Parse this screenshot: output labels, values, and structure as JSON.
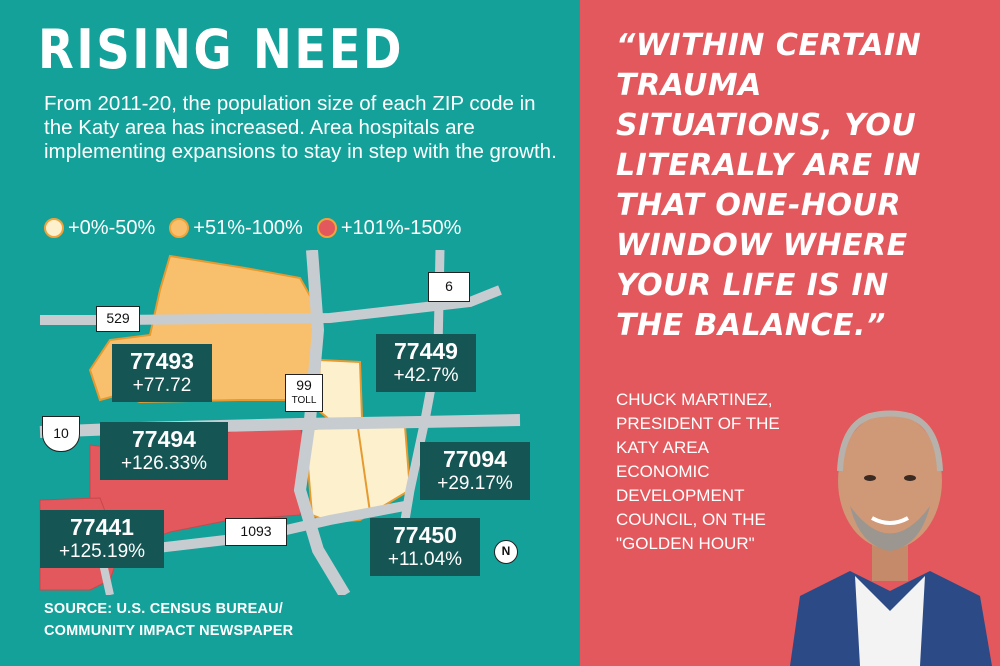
{
  "header": {
    "title": "RISING NEED",
    "intro": "From 2011-20, the population size of each ZIP code in the Katy area has increased. Area hospitals are implementing expansions to stay in step with the growth."
  },
  "legend": [
    {
      "label": "+0%-50%",
      "color": "#fdf0cc"
    },
    {
      "label": "+51%-100%",
      "color": "#f8c06d"
    },
    {
      "label": "+101%-150%",
      "color": "#e2585c"
    }
  ],
  "map": {
    "highways": {
      "h529": "529",
      "h6": "6",
      "h99": "99",
      "h99_toll": "TOLL",
      "h10": "10",
      "h1093": "1093"
    },
    "north_label": "N",
    "zips": [
      {
        "code": "77493",
        "change": "+77.72"
      },
      {
        "code": "77449",
        "change": "+42.7%"
      },
      {
        "code": "77494",
        "change": "+126.33%"
      },
      {
        "code": "77094",
        "change": "+29.17%"
      },
      {
        "code": "77441",
        "change": "+125.19%"
      },
      {
        "code": "77450",
        "change": "+11.04%"
      }
    ]
  },
  "source": {
    "line1": "SOURCE: U.S. CENSUS BUREAU/",
    "line2": "COMMUNITY IMPACT NEWSPAPER"
  },
  "quote": {
    "lines": [
      "“WITHIN CERTAIN",
      "TRAUMA",
      "SITUATIONS, YOU",
      "LITERALLY ARE IN",
      "THAT ONE-HOUR",
      "WINDOW WHERE",
      "YOUR LIFE IS IN",
      "THE BALANCE.”"
    ]
  },
  "attribution": {
    "lines": [
      "CHUCK MARTINEZ,",
      "PRESIDENT OF THE",
      "KATY AREA",
      "ECONOMIC",
      "DEVELOPMENT",
      "COUNCIL, ON THE",
      "\"GOLDEN HOUR\""
    ]
  },
  "colors": {
    "teal": "#14a19a",
    "coral": "#e2585c",
    "dark_label": "#155553",
    "light_zone": "#fdf0cc",
    "mid_zone": "#f8c06d"
  }
}
